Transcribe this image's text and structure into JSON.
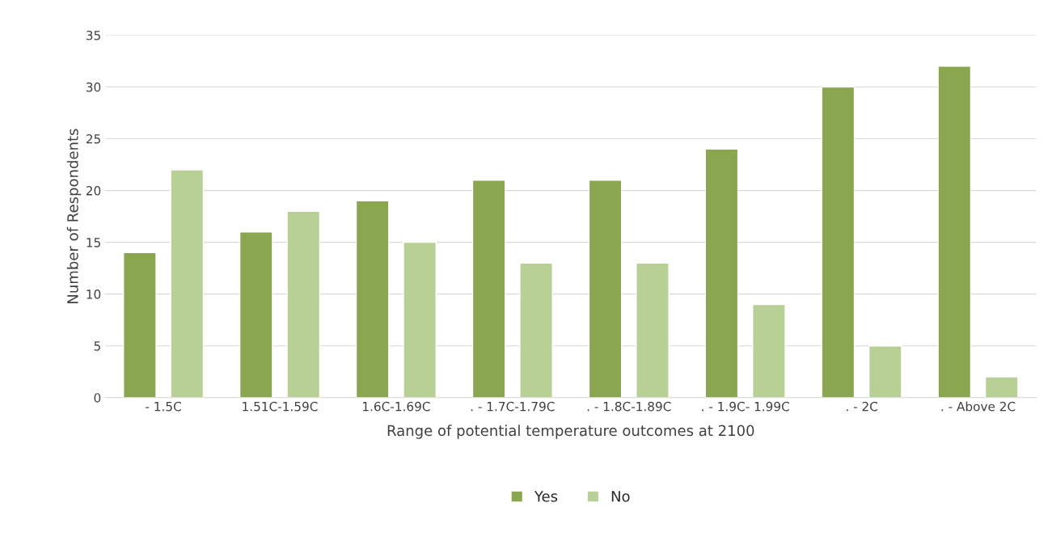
{
  "chart_data": {
    "type": "bar",
    "xlabel": "Range of potential temperature outcomes at 2100",
    "ylabel": "Number of Respondents",
    "categories": [
      "- 1.5C",
      "1.51C-1.59C",
      "1.6C-1.69C",
      ". - 1.7C-1.79C",
      ". - 1.8C-1.89C",
      ". - 1.9C- 1.99C",
      ". - 2C",
      ". - Above 2C"
    ],
    "series": [
      {
        "name": "Yes",
        "color": "#8aa64e",
        "values": [
          14,
          16,
          19,
          21,
          21,
          24,
          30,
          32
        ]
      },
      {
        "name": "No",
        "color": "#b8cf96",
        "values": [
          22,
          18,
          15,
          13,
          13,
          9,
          5,
          2
        ]
      }
    ],
    "ylim": [
      0,
      35
    ],
    "yticks": [
      0,
      5,
      10,
      15,
      20,
      25,
      30,
      35
    ],
    "grid": "y",
    "legend": "bottom"
  }
}
